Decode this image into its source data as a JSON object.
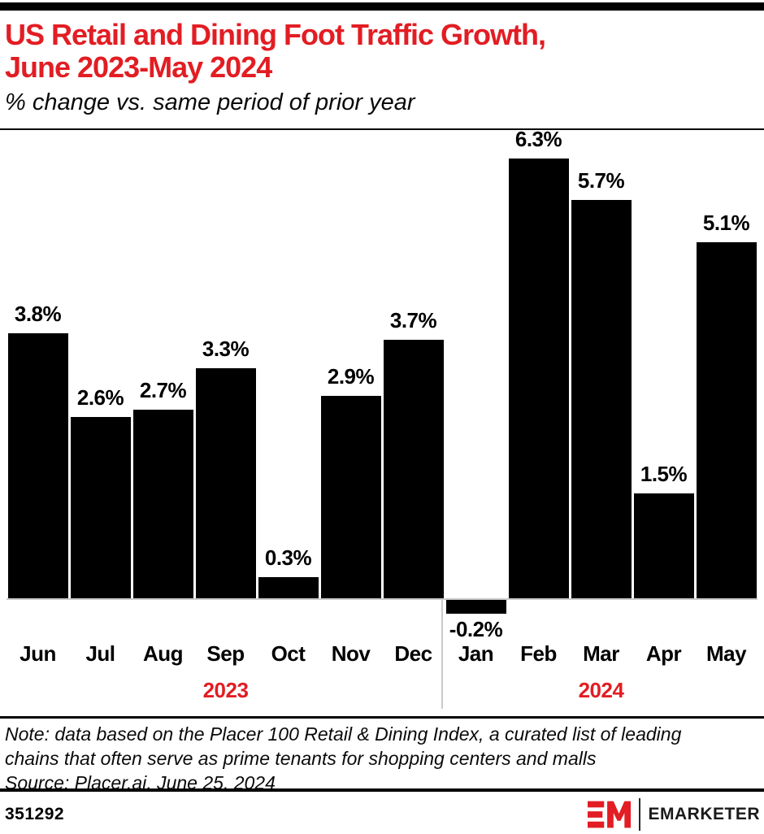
{
  "colors": {
    "accent_red": "#E21D23",
    "bar_black": "#000000",
    "axis_gray": "#C9C9C9"
  },
  "header": {
    "title_line1": "US Retail and Dining Foot Traffic Growth,",
    "title_line2": "June 2023-May 2024",
    "subtitle": "% change vs. same period of prior year"
  },
  "chart_data": {
    "type": "bar",
    "title": "US Retail and Dining Foot Traffic Growth, June 2023-May 2024",
    "subtitle": "% change vs. same period of prior year",
    "categories": [
      "Jun",
      "Jul",
      "Aug",
      "Sep",
      "Oct",
      "Nov",
      "Dec",
      "Jan",
      "Feb",
      "Mar",
      "Apr",
      "May"
    ],
    "values": [
      3.8,
      2.6,
      2.7,
      3.3,
      0.3,
      2.9,
      3.7,
      -0.2,
      6.3,
      5.7,
      1.5,
      5.1
    ],
    "value_labels": [
      "3.8%",
      "2.6%",
      "2.7%",
      "3.3%",
      "0.3%",
      "2.9%",
      "3.7%",
      "-0.2%",
      "6.3%",
      "5.7%",
      "1.5%",
      "5.1%"
    ],
    "unit": "%",
    "year_groups": [
      {
        "label": "2023",
        "months": 7
      },
      {
        "label": "2024",
        "months": 5
      }
    ],
    "ylim": [
      -0.5,
      6.8
    ],
    "grid": false,
    "data_labels": true,
    "legend": "none"
  },
  "footnote": {
    "note": "Note: data based on the Placer 100 Retail & Dining Index, a curated list of leading chains that often serve as prime tenants for shopping centers and malls",
    "source": "Source: Placer.ai, June 25, 2024"
  },
  "footer": {
    "chart_id": "351292",
    "brand": "EMARKETER",
    "monogram": "EM"
  }
}
